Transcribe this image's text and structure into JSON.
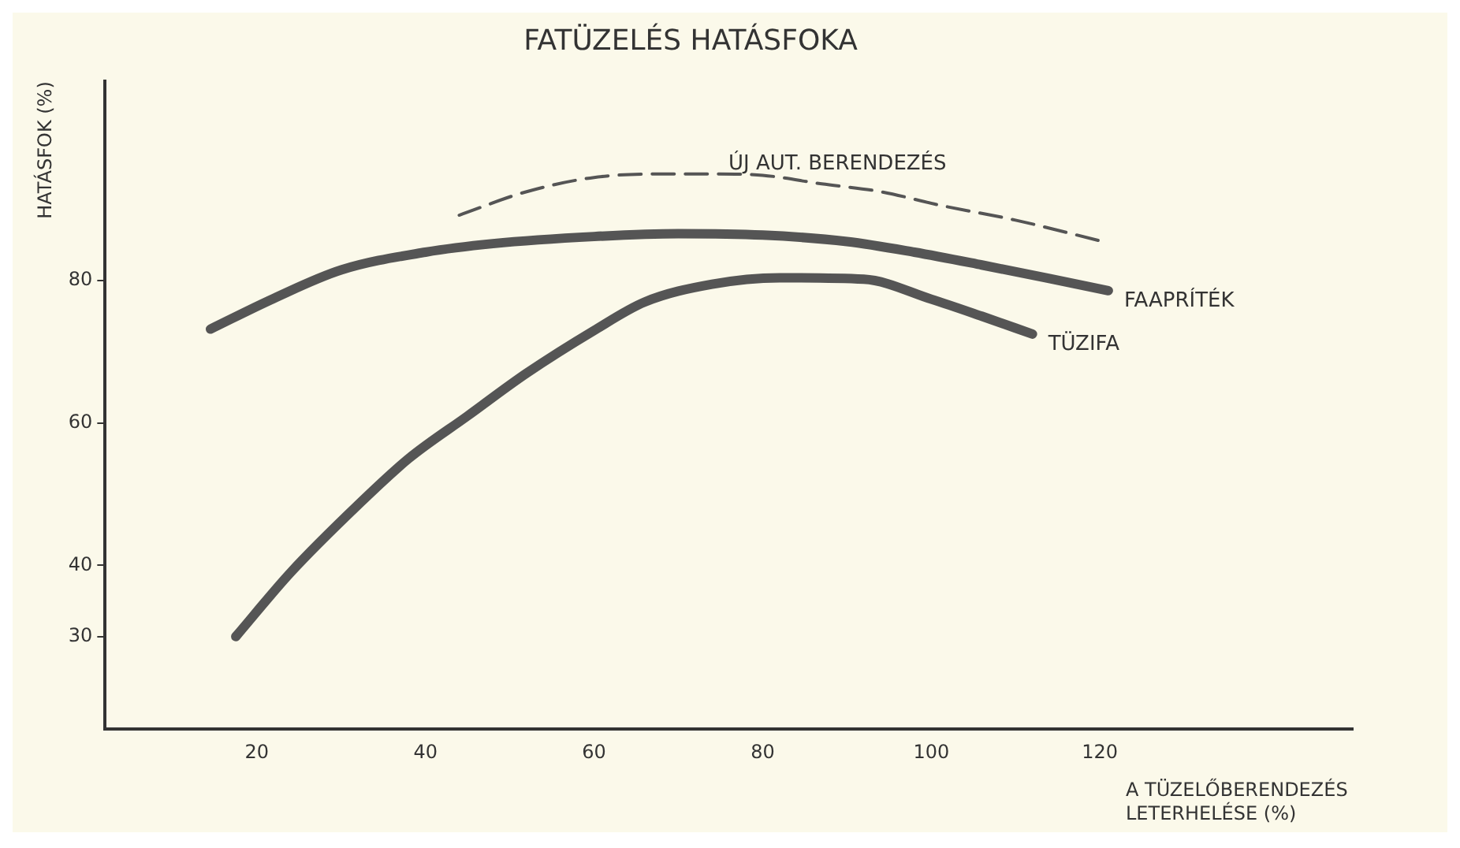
{
  "chart_data": {
    "type": "line",
    "title": "FATÜZELÉS HATÁSFOKA",
    "xlabel": "A TÜZELŐBERENDEZÉS LETERHELÉSE (%)",
    "ylabel": "HATÁSFOK (%)",
    "xlim": [
      2,
      150
    ],
    "xticks": [
      20,
      40,
      60,
      80,
      100,
      120
    ],
    "ylim": [
      17,
      108
    ],
    "yticks": [
      30,
      40,
      60,
      80
    ],
    "grid": false,
    "legend": false,
    "marker": "none",
    "series": [
      {
        "name": "ÚJ AUT. BERENDEZÉS",
        "color": "#555555",
        "line_style": "dashed",
        "x": [
          44,
          52,
          60,
          68,
          74,
          80,
          87,
          94,
          101,
          110,
          120
        ],
        "values": [
          89.2,
          92.5,
          94.5,
          95,
          95,
          94.8,
          93.6,
          92.5,
          90.6,
          88.5,
          85.6
        ]
      },
      {
        "name": "FAAPRÍTÉK",
        "color": "#555555",
        "line_style": "solid",
        "x": [
          14.5,
          22,
          30,
          40,
          48,
          60,
          70,
          80,
          90,
          98,
          106,
          114,
          121
        ],
        "values": [
          73.2,
          77.5,
          81.5,
          84,
          85.2,
          86.2,
          86.6,
          86.4,
          85.5,
          84,
          82.2,
          80.3,
          78.6
        ]
      },
      {
        "name": "TÜZIFA",
        "color": "#555555",
        "line_style": "solid",
        "x": [
          17.5,
          24,
          32,
          38,
          45,
          52,
          60,
          66,
          74,
          82,
          92,
          100,
          106,
          112
        ],
        "values": [
          30,
          39,
          48.5,
          55,
          61,
          67,
          73,
          77,
          79.5,
          80.4,
          80.2,
          77.4,
          75,
          72.5
        ]
      }
    ]
  }
}
